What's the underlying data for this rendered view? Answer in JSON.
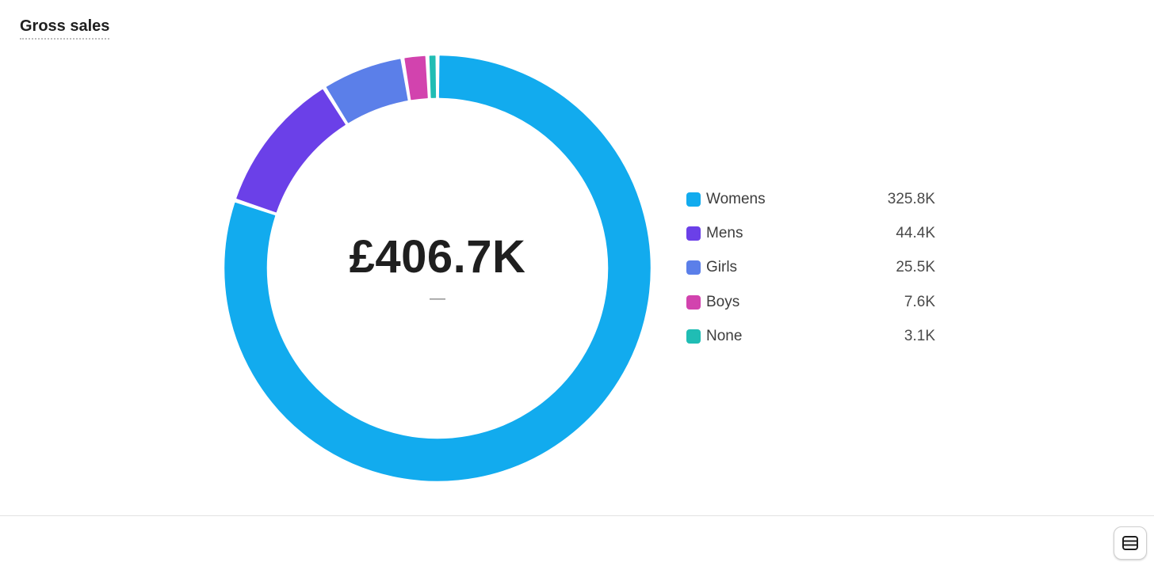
{
  "card": {
    "title": "Gross sales"
  },
  "icons": {
    "table_toggle": "table-icon"
  },
  "chart_data": {
    "type": "pie",
    "variant": "donut",
    "total_label": "£406.7K",
    "comparison_label": "—",
    "legend_position": "right",
    "series": [
      {
        "name": "Womens",
        "value": 325.8,
        "value_label": "325.8K",
        "color": "#12abee"
      },
      {
        "name": "Mens",
        "value": 44.4,
        "value_label": "44.4K",
        "color": "#6b40e8"
      },
      {
        "name": "Girls",
        "value": 25.5,
        "value_label": "25.5K",
        "color": "#5b7fe9"
      },
      {
        "name": "Boys",
        "value": 7.6,
        "value_label": "7.6K",
        "color": "#d243ae"
      },
      {
        "name": "None",
        "value": 3.1,
        "value_label": "3.1K",
        "color": "#20bdb4"
      }
    ]
  }
}
